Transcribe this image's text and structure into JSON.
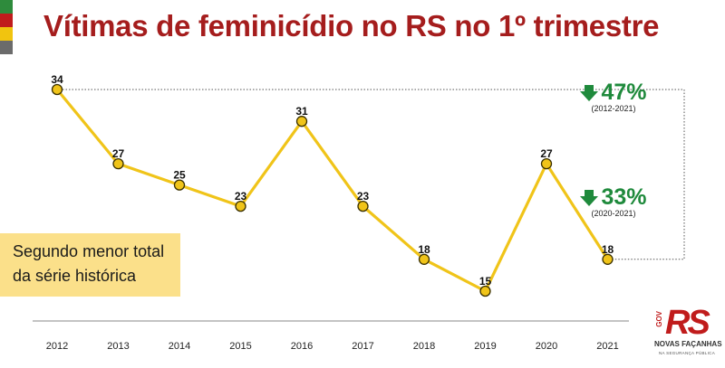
{
  "title": "Vítimas de feminicídio no RS no 1º trimestre",
  "colors": {
    "flag": [
      "#2e8b3c",
      "#c01c1c",
      "#f1c40f",
      "#6b6b6b"
    ],
    "title": "#a51d1d",
    "line": "#f0c419",
    "marker_fill": "#f0c419",
    "marker_stroke": "#3a3000",
    "highlight_box": "#fbe08a",
    "decrease": "#1f8a3c"
  },
  "chart_data": {
    "type": "line",
    "title": "Vítimas de feminicídio no RS no 1º trimestre",
    "categories": [
      "2012",
      "2013",
      "2014",
      "2015",
      "2016",
      "2017",
      "2018",
      "2019",
      "2020",
      "2021"
    ],
    "series": [
      {
        "values": [
          34,
          27,
          25,
          23,
          31,
          23,
          18,
          15,
          27,
          18
        ]
      }
    ],
    "ylim": [
      15,
      34
    ],
    "grid": false,
    "data_labels": true,
    "comparisons": [
      {
        "label": "47%",
        "period": "(2012-2021)",
        "direction": "down",
        "from": "2012",
        "to": "2021"
      },
      {
        "label": "33%",
        "period": "(2020-2021)",
        "direction": "down",
        "from": "2020",
        "to": "2021"
      }
    ],
    "annotation": [
      "Segundo menor total",
      "da série histórica"
    ]
  },
  "logo": {
    "text": "RS",
    "gov": "GOV",
    "name": "NOVAS FAÇANHAS",
    "subtitle": "NA SEGURANÇA PÚBLICA"
  }
}
